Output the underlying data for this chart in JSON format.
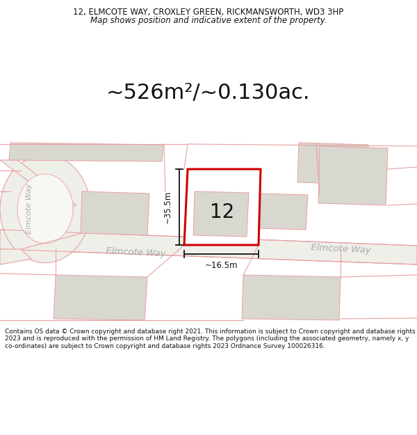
{
  "title_line1": "12, ELMCOTE WAY, CROXLEY GREEN, RICKMANSWORTH, WD3 3HP",
  "title_line2": "Map shows position and indicative extent of the property.",
  "area_text": "~526m²/~0.130ac.",
  "number_label": "12",
  "dim_vertical": "~35.5m",
  "dim_horizontal": "~16.5m",
  "road_label_center": "Elmcote Way",
  "road_label_right": "Elmcote Way",
  "road_label_left": "Elmcote Way",
  "copyright_text": "Contains OS data © Crown copyright and database right 2021. This information is subject to Crown copyright and database rights 2023 and is reproduced with the permission of HM Land Registry. The polygons (including the associated geometry, namely x, y co-ordinates) are subject to Crown copyright and database rights 2023 Ordnance Survey 100026316.",
  "bg_color": "#ffffff",
  "map_bg": "#f7f7f3",
  "road_color": "#efefea",
  "building_color": "#d8d8d0",
  "plot_fill": "#ffffff",
  "plot_border": "#cc0000",
  "road_line_color": "#e8a0a0",
  "dim_line_color": "#111111",
  "text_color": "#111111",
  "road_text_color": "#aaaaaa"
}
